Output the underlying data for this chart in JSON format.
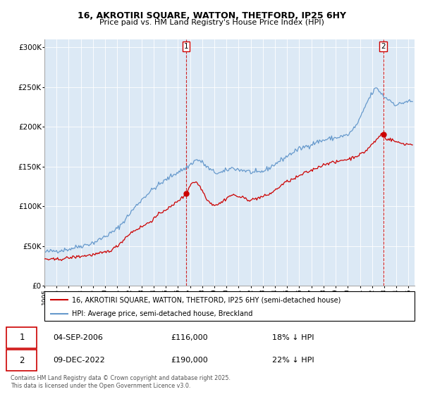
{
  "title": "16, AKROTIRI SQUARE, WATTON, THETFORD, IP25 6HY",
  "subtitle": "Price paid vs. HM Land Registry's House Price Index (HPI)",
  "legend_label_red": "16, AKROTIRI SQUARE, WATTON, THETFORD, IP25 6HY (semi-detached house)",
  "legend_label_blue": "HPI: Average price, semi-detached house, Breckland",
  "footer": "Contains HM Land Registry data © Crown copyright and database right 2025.\nThis data is licensed under the Open Government Licence v3.0.",
  "annotation1_date": "04-SEP-2006",
  "annotation1_price": "£116,000",
  "annotation1_hpi": "18% ↓ HPI",
  "annotation2_date": "09-DEC-2022",
  "annotation2_price": "£190,000",
  "annotation2_hpi": "22% ↓ HPI",
  "marker1_x": 2006.67,
  "marker1_y": 116000,
  "marker2_x": 2022.92,
  "marker2_y": 190000,
  "vline1_x": 2006.67,
  "vline2_x": 2022.92,
  "ylim": [
    0,
    310000
  ],
  "xlim": [
    1995.0,
    2025.5
  ],
  "red_color": "#cc0000",
  "blue_color": "#6699cc",
  "chart_bg": "#dce9f5",
  "background_color": "#ffffff",
  "grid_color": "#ffffff",
  "annotation_box_color": "#cc0000",
  "hpi_anchors": [
    [
      1995.0,
      42000
    ],
    [
      1996.0,
      44000
    ],
    [
      1997.0,
      46000
    ],
    [
      1998.0,
      50000
    ],
    [
      1999.0,
      54000
    ],
    [
      2000.0,
      62000
    ],
    [
      2001.0,
      72000
    ],
    [
      2002.0,
      90000
    ],
    [
      2003.0,
      108000
    ],
    [
      2004.0,
      122000
    ],
    [
      2005.0,
      133000
    ],
    [
      2006.0,
      143000
    ],
    [
      2007.0,
      152000
    ],
    [
      2007.5,
      158000
    ],
    [
      2008.0,
      155000
    ],
    [
      2008.5,
      148000
    ],
    [
      2009.0,
      143000
    ],
    [
      2009.5,
      142000
    ],
    [
      2010.0,
      145000
    ],
    [
      2010.5,
      148000
    ],
    [
      2011.0,
      146000
    ],
    [
      2011.5,
      145000
    ],
    [
      2012.0,
      143000
    ],
    [
      2012.5,
      142000
    ],
    [
      2013.0,
      144000
    ],
    [
      2013.5,
      148000
    ],
    [
      2014.0,
      153000
    ],
    [
      2014.5,
      158000
    ],
    [
      2015.0,
      163000
    ],
    [
      2015.5,
      168000
    ],
    [
      2016.0,
      172000
    ],
    [
      2016.5,
      175000
    ],
    [
      2017.0,
      178000
    ],
    [
      2017.5,
      181000
    ],
    [
      2018.0,
      183000
    ],
    [
      2018.5,
      185000
    ],
    [
      2019.0,
      186000
    ],
    [
      2019.5,
      188000
    ],
    [
      2020.0,
      190000
    ],
    [
      2020.5,
      198000
    ],
    [
      2021.0,
      210000
    ],
    [
      2021.5,
      228000
    ],
    [
      2022.0,
      242000
    ],
    [
      2022.3,
      248000
    ],
    [
      2022.7,
      243000
    ],
    [
      2023.0,
      238000
    ],
    [
      2023.5,
      233000
    ],
    [
      2024.0,
      228000
    ],
    [
      2024.5,
      230000
    ],
    [
      2025.0,
      232000
    ],
    [
      2025.4,
      230000
    ]
  ],
  "red_anchors": [
    [
      1995.0,
      34000
    ],
    [
      1996.0,
      33000
    ],
    [
      1997.0,
      35000
    ],
    [
      1998.0,
      37000
    ],
    [
      1999.0,
      39000
    ],
    [
      2000.0,
      42000
    ],
    [
      2001.0,
      50000
    ],
    [
      2002.0,
      65000
    ],
    [
      2003.0,
      74000
    ],
    [
      2004.0,
      84000
    ],
    [
      2005.0,
      96000
    ],
    [
      2005.5,
      100000
    ],
    [
      2006.0,
      107000
    ],
    [
      2006.67,
      116000
    ],
    [
      2007.0,
      126000
    ],
    [
      2007.5,
      130000
    ],
    [
      2008.0,
      120000
    ],
    [
      2008.5,
      107000
    ],
    [
      2009.0,
      102000
    ],
    [
      2009.5,
      104000
    ],
    [
      2010.0,
      110000
    ],
    [
      2010.5,
      114000
    ],
    [
      2011.0,
      112000
    ],
    [
      2011.5,
      110000
    ],
    [
      2012.0,
      108000
    ],
    [
      2012.5,
      110000
    ],
    [
      2013.0,
      112000
    ],
    [
      2013.5,
      115000
    ],
    [
      2014.0,
      120000
    ],
    [
      2014.5,
      126000
    ],
    [
      2015.0,
      131000
    ],
    [
      2015.5,
      134000
    ],
    [
      2016.0,
      138000
    ],
    [
      2016.5,
      142000
    ],
    [
      2017.0,
      145000
    ],
    [
      2017.5,
      149000
    ],
    [
      2018.0,
      152000
    ],
    [
      2018.5,
      155000
    ],
    [
      2019.0,
      155000
    ],
    [
      2019.5,
      158000
    ],
    [
      2020.0,
      159000
    ],
    [
      2020.5,
      162000
    ],
    [
      2021.0,
      165000
    ],
    [
      2021.5,
      170000
    ],
    [
      2022.0,
      178000
    ],
    [
      2022.5,
      186000
    ],
    [
      2022.92,
      190000
    ],
    [
      2023.0,
      188000
    ],
    [
      2023.5,
      184000
    ],
    [
      2024.0,
      181000
    ],
    [
      2024.5,
      179000
    ],
    [
      2025.0,
      178000
    ],
    [
      2025.4,
      178000
    ]
  ]
}
